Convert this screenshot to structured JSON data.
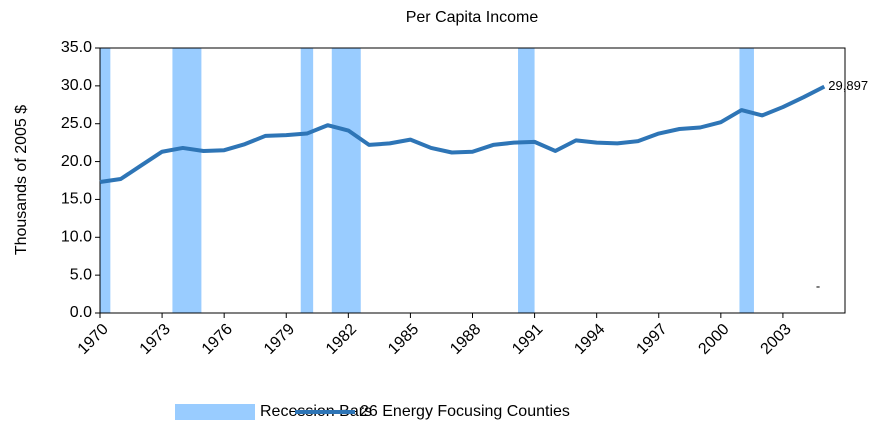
{
  "chart_data": {
    "type": "line",
    "title": "Per Capita Income",
    "y_label": "Thousands of 2005 $",
    "x": [
      1970,
      1971,
      1972,
      1973,
      1974,
      1975,
      1976,
      1977,
      1978,
      1979,
      1980,
      1981,
      1982,
      1983,
      1984,
      1985,
      1986,
      1987,
      1988,
      1989,
      1990,
      1991,
      1992,
      1993,
      1994,
      1995,
      1996,
      1997,
      1998,
      1999,
      2000,
      2001,
      2002,
      2003,
      2004,
      2005
    ],
    "series": [
      {
        "name": "26 Energy Focusing Counties",
        "color": "#2e75b6",
        "values": [
          17.3,
          17.7,
          19.5,
          21.3,
          21.8,
          21.4,
          21.5,
          22.3,
          23.4,
          23.5,
          23.7,
          24.8,
          24.1,
          22.2,
          22.4,
          22.9,
          21.8,
          21.2,
          21.3,
          22.2,
          22.5,
          22.6,
          21.4,
          22.8,
          22.5,
          22.4,
          22.7,
          23.7,
          24.3,
          24.5,
          25.2,
          26.8,
          26.1,
          27.2,
          28.5,
          29.897
        ],
        "value_labels": [
          null,
          null,
          null,
          null,
          null,
          null,
          null,
          null,
          null,
          null,
          null,
          null,
          null,
          null,
          null,
          null,
          null,
          null,
          null,
          null,
          null,
          null,
          null,
          null,
          null,
          null,
          null,
          null,
          null,
          null,
          null,
          null,
          null,
          null,
          null,
          "29,897"
        ]
      }
    ],
    "recession_bars": {
      "name": "Recession Bars",
      "color": "#99ccff",
      "ranges": [
        [
          1970,
          1970.5
        ],
        [
          1973.5,
          1974.9
        ],
        [
          1979.7,
          1980.3
        ],
        [
          1981.2,
          1982.6
        ],
        [
          1990.2,
          1991.0
        ],
        [
          2000.9,
          2001.6
        ]
      ]
    },
    "annotations": [
      "-"
    ],
    "xlim": [
      1970,
      2006
    ],
    "xticks": [
      1970,
      1973,
      1976,
      1979,
      1982,
      1985,
      1988,
      1991,
      1994,
      1997,
      2000,
      2003
    ],
    "ylim": [
      0,
      35
    ],
    "yticks": [
      {
        "value": 0,
        "label": "0.0"
      },
      {
        "value": 5,
        "label": "5.0"
      },
      {
        "value": 10,
        "label": "10.0"
      },
      {
        "value": 15,
        "label": "15.0"
      },
      {
        "value": 20,
        "label": "20.0"
      },
      {
        "value": 25,
        "label": "25.0"
      },
      {
        "value": 30,
        "label": "30.0"
      },
      {
        "value": 35,
        "label": "35.0"
      }
    ]
  }
}
